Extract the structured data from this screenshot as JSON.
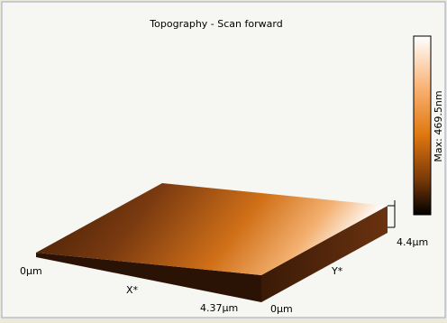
{
  "title": "Topography - Scan forward",
  "x_axis": {
    "start": "0µm",
    "label": "X*",
    "end": "4.37µm"
  },
  "y_axis": {
    "start": "0µm",
    "label": "Y*",
    "end": "4.4µm"
  },
  "colorbar_label": "Max: 469.5nm"
}
